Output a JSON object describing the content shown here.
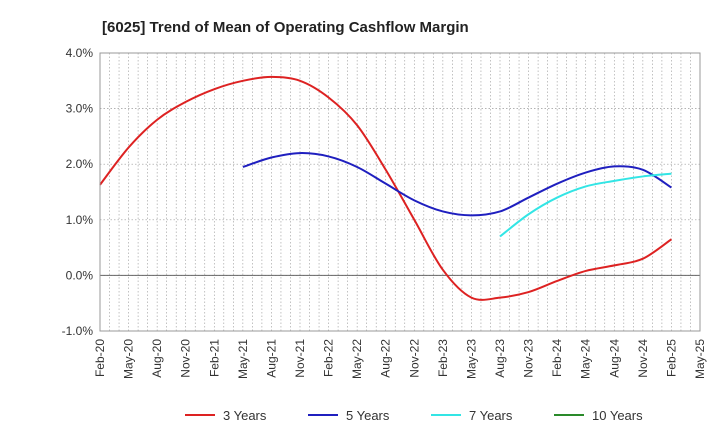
{
  "chart_data": {
    "type": "line",
    "title": "[6025]  Trend of Mean of Operating Cashflow Margin",
    "xlabel": "",
    "ylabel": "",
    "x_ticks": [
      "Feb-20",
      "May-20",
      "Aug-20",
      "Nov-20",
      "Feb-21",
      "May-21",
      "Aug-21",
      "Nov-21",
      "Feb-22",
      "May-22",
      "Aug-22",
      "Nov-22",
      "Feb-23",
      "May-23",
      "Aug-23",
      "Nov-23",
      "Feb-24",
      "May-24",
      "Aug-24",
      "Nov-24",
      "Feb-25",
      "May-25"
    ],
    "y_ticks": [
      4.0,
      3.0,
      2.0,
      1.0,
      0.0,
      -1.0
    ],
    "y_tick_labels": [
      "4.0%",
      "3.0%",
      "2.0%",
      "1.0%",
      "0.0%",
      "-1.0%"
    ],
    "ylim": [
      -1.0,
      4.0
    ],
    "grid": true,
    "legend_position": "bottom",
    "series": [
      {
        "name": "3 Years",
        "color": "#dd2222",
        "x": [
          "Feb-20",
          "May-20",
          "Aug-20",
          "Nov-20",
          "Feb-21",
          "May-21",
          "Aug-21",
          "Nov-21",
          "Feb-22",
          "May-22",
          "Aug-22",
          "Nov-22",
          "Feb-23",
          "May-23",
          "Aug-23",
          "Nov-23",
          "Feb-24",
          "May-24",
          "Aug-24",
          "Nov-24",
          "Feb-25"
        ],
        "values": [
          1.63,
          2.3,
          2.8,
          3.12,
          3.35,
          3.5,
          3.57,
          3.5,
          3.2,
          2.7,
          1.9,
          1.0,
          0.1,
          -0.4,
          -0.4,
          -0.3,
          -0.1,
          0.08,
          0.18,
          0.3,
          0.65
        ]
      },
      {
        "name": "5 Years",
        "color": "#1f1fbf",
        "x": [
          "May-21",
          "Aug-21",
          "Nov-21",
          "Feb-22",
          "May-22",
          "Aug-22",
          "Nov-22",
          "Feb-23",
          "May-23",
          "Aug-23",
          "Nov-23",
          "Feb-24",
          "May-24",
          "Aug-24",
          "Nov-24",
          "Feb-25"
        ],
        "values": [
          1.95,
          2.12,
          2.2,
          2.14,
          1.95,
          1.65,
          1.35,
          1.15,
          1.08,
          1.15,
          1.4,
          1.65,
          1.85,
          1.96,
          1.9,
          1.58
        ]
      },
      {
        "name": "7 Years",
        "color": "#33e5e5",
        "x": [
          "Aug-23",
          "Nov-23",
          "Feb-24",
          "May-24",
          "Aug-24",
          "Nov-24",
          "Feb-25"
        ],
        "values": [
          0.7,
          1.1,
          1.4,
          1.6,
          1.7,
          1.78,
          1.83
        ]
      },
      {
        "name": "10 Years",
        "color": "#2a8a2a",
        "x": [],
        "values": []
      }
    ]
  }
}
